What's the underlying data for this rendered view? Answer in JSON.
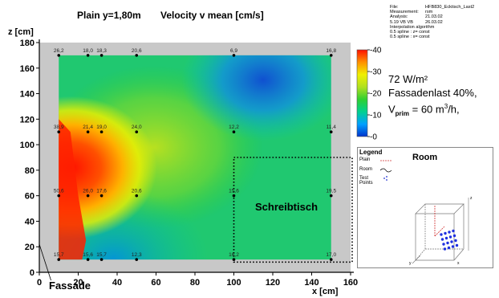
{
  "header": {
    "plane": "Plain y=1,80m",
    "quantity": "Velocity v mean [cm/s]"
  },
  "meta": {
    "lines": [
      [
        "File:",
        "HFB830_Ecktisch_Last2"
      ],
      [
        "Measurement:",
        "rsm"
      ],
      [
        "Analysis:",
        "21.03.02"
      ],
      [
        "5.19 VB VB",
        "26.03.02"
      ],
      [
        "Interpolation algorithm",
        ""
      ],
      [
        "0.5  spline : z= const",
        ""
      ],
      [
        "0.5  spline : x= const",
        ""
      ]
    ]
  },
  "chart_data": {
    "type": "heatmap",
    "title": "Velocity v mean [cm/s]",
    "xlabel": "x [cm]",
    "ylabel": "z [cm]",
    "xlim": [
      0,
      160
    ],
    "ylim": [
      0,
      180
    ],
    "x_ticks": [
      0,
      20,
      40,
      60,
      80,
      100,
      120,
      140,
      160
    ],
    "y_ticks": [
      0,
      20,
      40,
      60,
      80,
      100,
      120,
      140,
      160,
      180
    ],
    "colorbar": {
      "range": [
        0,
        40
      ],
      "ticks": [
        0,
        10,
        20,
        30,
        40
      ],
      "labels": [
        "0",
        "10",
        "20",
        "30",
        "40"
      ],
      "colors": [
        "#0033cc",
        "#00a0ff",
        "#00d090",
        "#30d030",
        "#b0e020",
        "#f0f000",
        "#ff9000",
        "#ff1000"
      ]
    },
    "measurement_points": [
      {
        "x": 10,
        "z": 170,
        "label": "26,2"
      },
      {
        "x": 25,
        "z": 170,
        "label": "18,0"
      },
      {
        "x": 32,
        "z": 170,
        "label": "18,3"
      },
      {
        "x": 50,
        "z": 170,
        "label": "20,6"
      },
      {
        "x": 100,
        "z": 170,
        "label": "6,9"
      },
      {
        "x": 150,
        "z": 170,
        "label": "16,8"
      },
      {
        "x": 10,
        "z": 110,
        "label": "38,9"
      },
      {
        "x": 25,
        "z": 110,
        "label": "21,4"
      },
      {
        "x": 32,
        "z": 110,
        "label": "19,0"
      },
      {
        "x": 50,
        "z": 110,
        "label": "24,0"
      },
      {
        "x": 100,
        "z": 110,
        "label": "12,2"
      },
      {
        "x": 150,
        "z": 110,
        "label": "11,4"
      },
      {
        "x": 10,
        "z": 60,
        "label": "50,6"
      },
      {
        "x": 25,
        "z": 60,
        "label": "26,0"
      },
      {
        "x": 32,
        "z": 60,
        "label": "17,6"
      },
      {
        "x": 50,
        "z": 60,
        "label": "20,6"
      },
      {
        "x": 100,
        "z": 60,
        "label": "15,6"
      },
      {
        "x": 150,
        "z": 60,
        "label": "19,5"
      },
      {
        "x": 10,
        "z": 10,
        "label": "15,7"
      },
      {
        "x": 25,
        "z": 10,
        "label": "15,6"
      },
      {
        "x": 32,
        "z": 10,
        "label": "15,7"
      },
      {
        "x": 50,
        "z": 10,
        "label": "12,3"
      },
      {
        "x": 100,
        "z": 10,
        "label": "16,2"
      },
      {
        "x": 150,
        "z": 10,
        "label": "17,0"
      }
    ],
    "desk_region": {
      "label": "Schreibtisch",
      "x": [
        100,
        160
      ],
      "z": [
        8,
        90
      ]
    },
    "wall_label": "Fassade"
  },
  "note": {
    "line1": "72 W/m²",
    "line2": "Fassadenlast 40%,",
    "line3_prefix": "V",
    "line3_sub": "prim",
    "line3_mid": " = 60 m",
    "line3_sup": "3",
    "line3_suffix": "/h,"
  },
  "legend": {
    "title": "Legend",
    "room_title": "Room",
    "items": [
      "Plain",
      "Room",
      "Test Points"
    ],
    "axis_labels": [
      "z",
      "y",
      "x"
    ]
  }
}
